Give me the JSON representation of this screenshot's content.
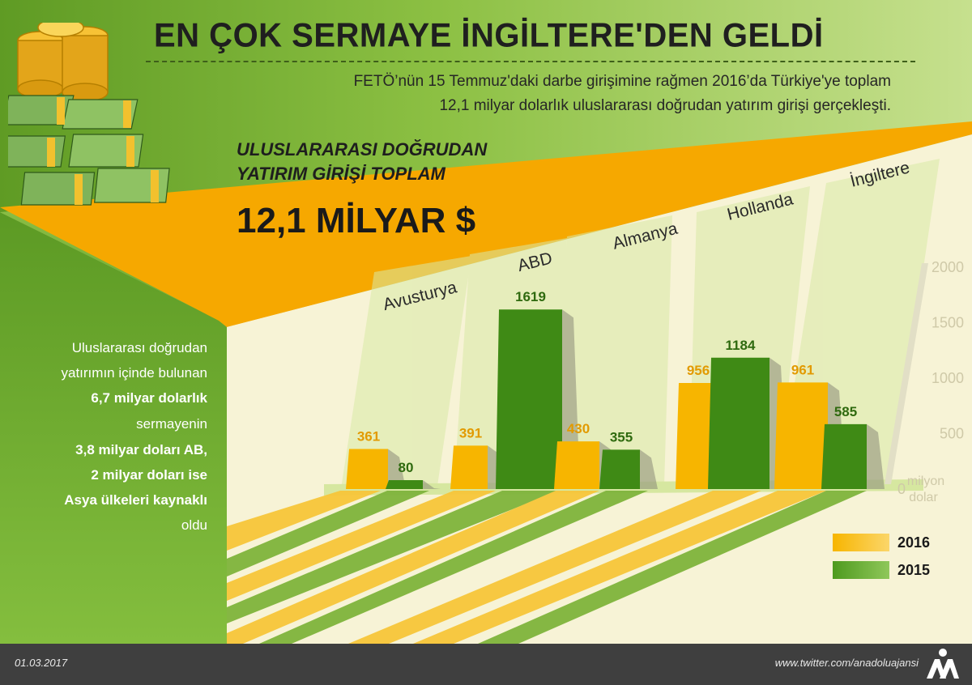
{
  "header": {
    "title": "EN ÇOK SERMAYE İNGİLTERE'DEN GELDİ",
    "intro_line1": "FETÖ’nün 15 Temmuz'daki darbe girişimine rağmen 2016’da Türkiye'ye toplam",
    "intro_line2": "12,1 milyar dolarlık uluslararası doğrudan yatırım girişi gerçekleşti."
  },
  "highlight": {
    "label_line1": "ULUSLARARASI DOĞRUDAN",
    "label_line2": "YATIRIM GİRİŞİ TOPLAM",
    "value": "12,1 MİLYAR $"
  },
  "side_note": {
    "lines": [
      {
        "text": "Uluslararası doğrudan",
        "bold": false
      },
      {
        "text": "yatırımın içinde bulunan",
        "bold": false
      },
      {
        "text": "6,7 milyar dolarlık",
        "bold": true
      },
      {
        "text": "sermayenin",
        "bold": false
      },
      {
        "text": "3,8 milyar doları AB,",
        "bold": true
      },
      {
        "text": "2 milyar doları ise",
        "bold": true
      },
      {
        "text": "Asya ülkeleri kaynaklı",
        "bold": true
      },
      {
        "text": "oldu",
        "bold": false
      }
    ]
  },
  "chart_data": {
    "type": "bar",
    "categories": [
      "Avusturya",
      "ABD",
      "Almanya",
      "Hollanda",
      "İngiltere"
    ],
    "series": [
      {
        "name": "2016",
        "values": [
          361,
          391,
          430,
          956,
          961
        ],
        "color": "#f7b500"
      },
      {
        "name": "2015",
        "values": [
          80,
          1619,
          355,
          1184,
          585
        ],
        "color": "#4e9a1e"
      }
    ],
    "ylim": [
      0,
      2000
    ],
    "yticks": [
      0,
      500,
      1000,
      1500,
      2000
    ],
    "unit_label": [
      "milyon",
      "dolar"
    ],
    "legend_position": "bottom-right"
  },
  "colors": {
    "bg_cream": "#f7f3d6",
    "green_dark": "#4e8e1c",
    "green_light": "#a6d057",
    "orange": "#f7b500"
  },
  "footer": {
    "date": "01.03.2017",
    "twitter": "www.twitter.com/anadoluajansi",
    "logo_icon": "aa-logo-icon"
  }
}
